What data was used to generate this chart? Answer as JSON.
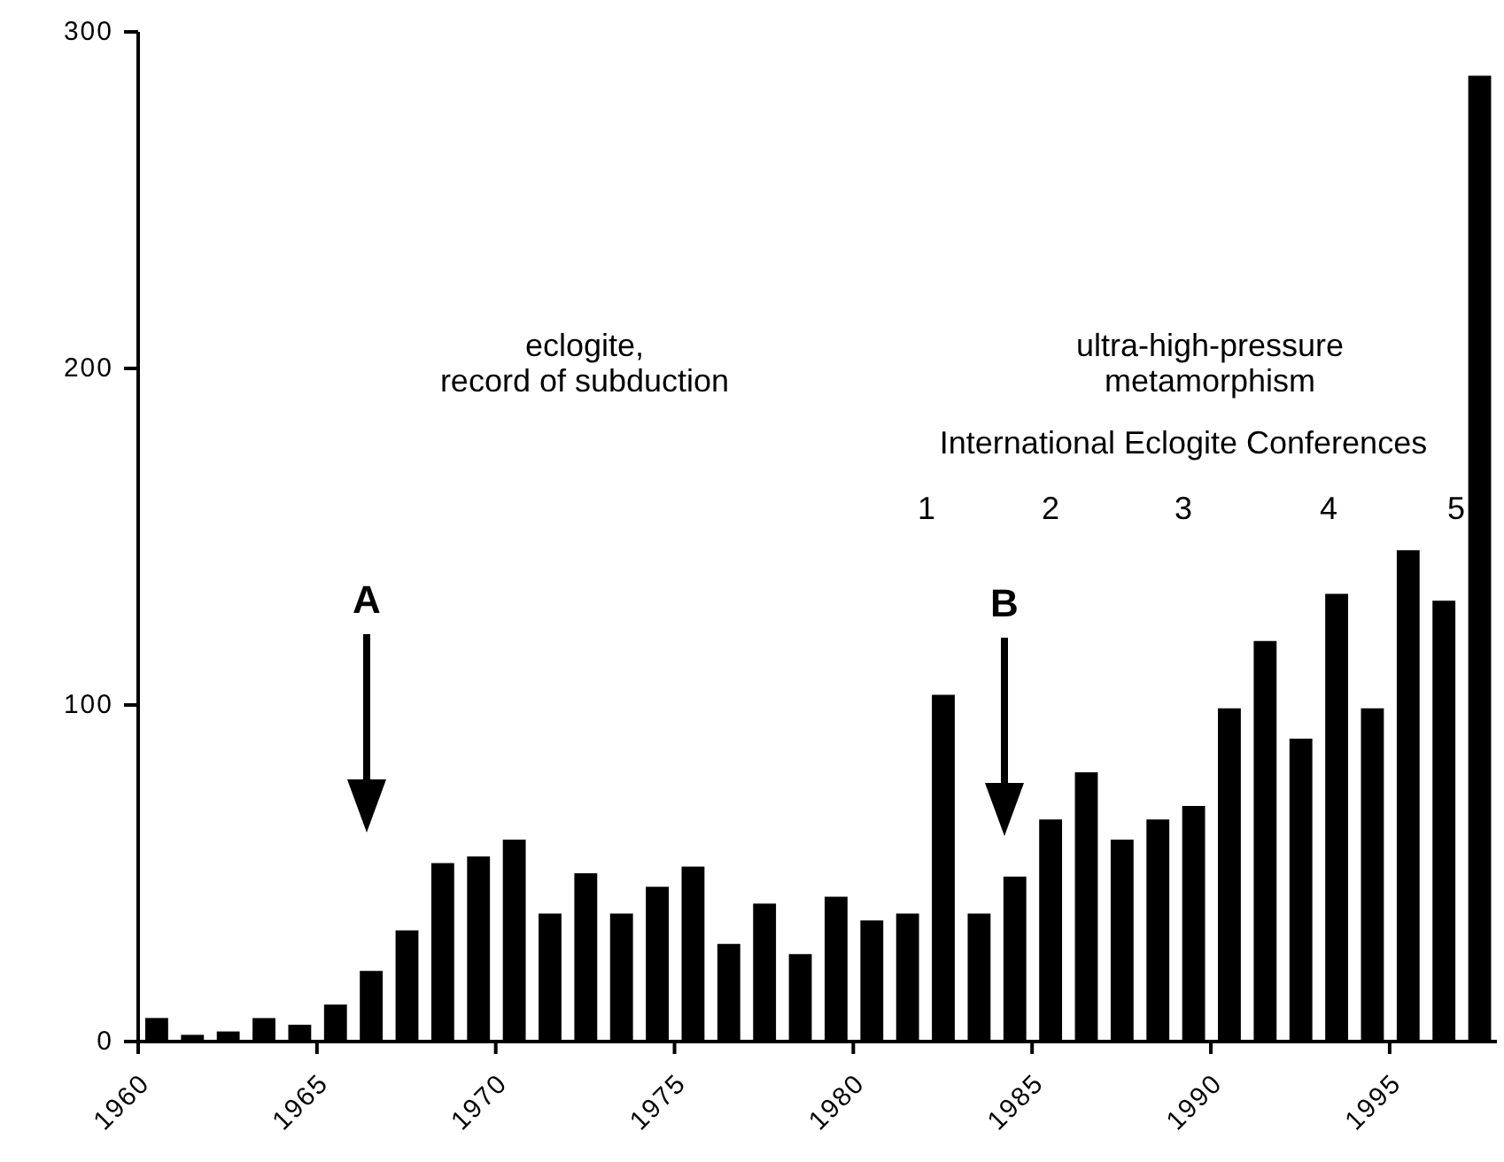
{
  "chart_data": {
    "type": "histogram",
    "bins": [
      1960,
      1961,
      1962,
      1963,
      1964,
      1965,
      1966,
      1967,
      1968,
      1969,
      1970,
      1971,
      1972,
      1973,
      1974,
      1975,
      1976,
      1977,
      1978,
      1979,
      1980,
      1981,
      1982,
      1983,
      1984,
      1985,
      1986,
      1987,
      1988,
      1989,
      1990,
      1991,
      1992,
      1993,
      1994,
      1995,
      1996,
      1997,
      1998
    ],
    "values": [
      7,
      2,
      3,
      7,
      5,
      11,
      21,
      33,
      53,
      55,
      60,
      38,
      50,
      38,
      46,
      52,
      29,
      41,
      26,
      43,
      36,
      38,
      103,
      38,
      49,
      66,
      80,
      60,
      66,
      70,
      99,
      119,
      90,
      133,
      99,
      146,
      131,
      287
    ],
    "color": "#000000",
    "xlim": [
      1960,
      1998
    ],
    "xticks": [
      1960,
      1965,
      1970,
      1975,
      1980,
      1985,
      1990,
      1995
    ],
    "ylim": [
      0,
      300
    ],
    "yticks": [
      0,
      100,
      200,
      300
    ],
    "annotations": [
      "eclogite,\nrecord of subduction",
      "ultra-high-pressure\nmetamorphism",
      "International Eclogite Conferences",
      "1",
      "2",
      "3",
      "4",
      "5",
      "A",
      "B"
    ]
  }
}
